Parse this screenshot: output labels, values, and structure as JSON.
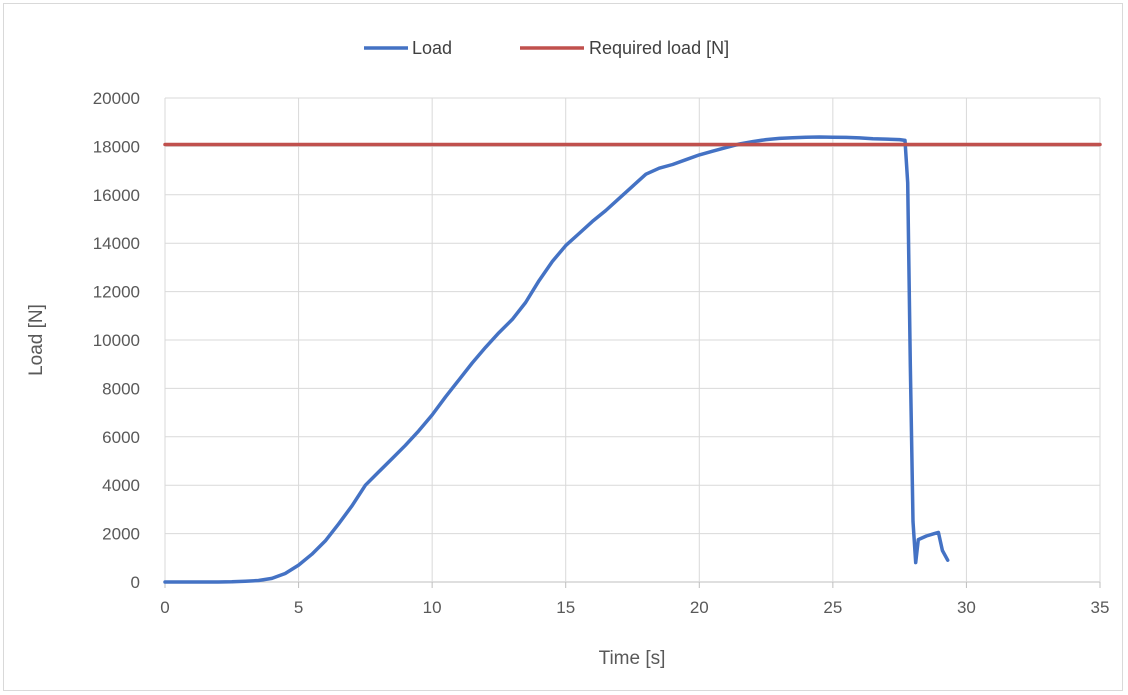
{
  "chart_data": {
    "type": "line",
    "xlabel": "Time [s]",
    "ylabel": "Load [N]",
    "xlim": [
      0,
      35
    ],
    "ylim": [
      0,
      20000
    ],
    "x_ticks": [
      0,
      5,
      10,
      15,
      20,
      25,
      30,
      35
    ],
    "y_ticks": [
      0,
      2000,
      4000,
      6000,
      8000,
      10000,
      12000,
      14000,
      16000,
      18000,
      20000
    ],
    "grid": true,
    "legend_position": "top",
    "series": [
      {
        "name": "Load",
        "color": "#4472c4",
        "x": [
          0,
          1,
          2,
          2.5,
          3,
          3.5,
          4,
          4.5,
          5,
          5.5,
          6,
          6.5,
          7,
          7.5,
          8,
          8.5,
          9,
          9.5,
          10,
          10.5,
          11,
          11.5,
          12,
          12.5,
          13,
          13.5,
          14,
          14.5,
          15,
          15.5,
          16,
          16.5,
          17,
          17.5,
          18,
          18.5,
          19,
          19.5,
          20,
          20.5,
          21,
          21.5,
          22,
          22.5,
          23,
          23.5,
          24,
          24.5,
          25,
          25.5,
          26,
          26.5,
          27,
          27.5,
          27.7,
          27.8,
          27.9,
          28.0,
          28.1,
          28.2,
          28.5,
          28.8,
          28.95,
          29.1,
          29.3
        ],
        "y": [
          0,
          0,
          0,
          10,
          30,
          60,
          150,
          350,
          700,
          1150,
          1700,
          2400,
          3150,
          4000,
          4550,
          5100,
          5650,
          6250,
          6900,
          7650,
          8350,
          9050,
          9700,
          10300,
          10850,
          11550,
          12450,
          13250,
          13900,
          14400,
          14900,
          15350,
          15850,
          16350,
          16850,
          17100,
          17250,
          17450,
          17650,
          17800,
          17950,
          18100,
          18200,
          18280,
          18330,
          18360,
          18380,
          18390,
          18380,
          18370,
          18350,
          18320,
          18300,
          18280,
          18250,
          16500,
          9000,
          2500,
          800,
          1750,
          1900,
          2000,
          2050,
          1300,
          900
        ]
      },
      {
        "name": "Required load [N]",
        "color": "#c0504d",
        "x": [
          0,
          35
        ],
        "y": [
          18080,
          18080
        ]
      }
    ]
  }
}
